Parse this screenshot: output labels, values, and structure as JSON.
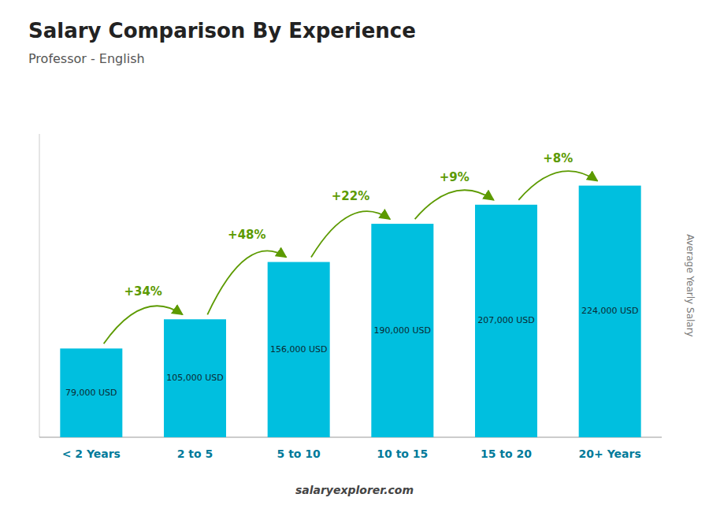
{
  "chart_data": {
    "type": "bar",
    "title": "Salary Comparison By Experience",
    "subtitle": "Professor - English",
    "y_label": "Average Yearly Salary",
    "watermark": "salaryexplorer.com",
    "categories": [
      "< 2 Years",
      "2 to 5",
      "5 to 10",
      "10 to 15",
      "15 to 20",
      "20+ Years"
    ],
    "values": [
      79000,
      105000,
      156000,
      190000,
      207000,
      224000
    ],
    "value_labels": [
      "79,000 USD",
      "105,000 USD",
      "156,000 USD",
      "190,000 USD",
      "207,000 USD",
      "224,000 USD"
    ],
    "data_labels": true,
    "annotations": [
      "+34%",
      "+48%",
      "+22%",
      "+9%",
      "+8%"
    ],
    "color": "#00bfdf",
    "ylim": [
      0,
      270000
    ],
    "tick_labels": "x",
    "grid": false
  }
}
